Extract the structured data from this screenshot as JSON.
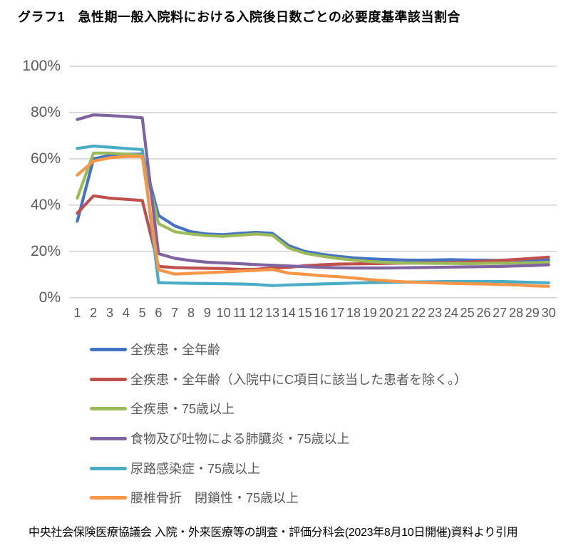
{
  "page": {
    "title": "グラフ1　急性期一般入院料における入院後日数ごとの必要度基準該当割合",
    "footer": "中央社会保険医療協議会 入院・外来医療等の調査・評価分科会(2023年8月10日開催)資料より引用"
  },
  "chart_data": {
    "type": "line",
    "title": "急性期一般入院料における入院後日数ごとの必要度基準該当割合",
    "x": [
      1,
      2,
      3,
      4,
      5,
      6,
      7,
      8,
      9,
      10,
      11,
      12,
      13,
      14,
      15,
      16,
      17,
      18,
      19,
      20,
      21,
      22,
      23,
      24,
      25,
      26,
      27,
      28,
      29,
      30
    ],
    "ylim": [
      0,
      100
    ],
    "y_ticks": [
      {
        "value": 0,
        "label": "0%"
      },
      {
        "value": 20,
        "label": "20%"
      },
      {
        "value": 40,
        "label": "40%"
      },
      {
        "value": 60,
        "label": "60%"
      },
      {
        "value": 80,
        "label": "80%"
      },
      {
        "value": 100,
        "label": "100%"
      }
    ],
    "grid": "horizontal",
    "legend_position": "bottom-left",
    "gridline_color": "#D8D8D8",
    "axis_text_color": "#595959",
    "series": [
      {
        "name": "全疾患・全年齢",
        "color": "#4472C4",
        "values": [
          33,
          60,
          61.5,
          62,
          62,
          35.5,
          31,
          28.5,
          27.5,
          27.2,
          27.8,
          28.2,
          27.8,
          22.5,
          20,
          18.8,
          17.9,
          17.2,
          16.8,
          16.5,
          16.3,
          16.2,
          16.3,
          16.4,
          16.3,
          16.2,
          16.1,
          16.1,
          16.2,
          16.3
        ]
      },
      {
        "name": "全疾患・全年齢（入院中にC項目に該当した患者を除く。）",
        "color": "#C0504D",
        "values": [
          36.5,
          44,
          43,
          42.5,
          42,
          13.5,
          13,
          12.8,
          12.7,
          12.6,
          12.2,
          12.3,
          12.8,
          13.1,
          13.8,
          14.2,
          14.5,
          14.6,
          14.7,
          14.8,
          14.9,
          15,
          15.1,
          15.2,
          15.4,
          15.7,
          16.1,
          16.5,
          17,
          17.5
        ]
      },
      {
        "name": "全疾患・75歳以上",
        "color": "#9BBB59",
        "values": [
          43,
          62.5,
          62.5,
          62,
          61.5,
          32,
          28.5,
          27.5,
          26.8,
          26.5,
          27,
          27.5,
          27,
          21.5,
          19.2,
          18,
          17,
          16.2,
          15.6,
          15.2,
          15,
          14.9,
          14.8,
          14.8,
          14.7,
          14.8,
          14.9,
          15,
          15.1,
          15.3
        ]
      },
      {
        "name": "食物及び吐物による肺臓炎・75歳以上",
        "color": "#8064A2",
        "values": [
          77,
          79,
          78.7,
          78.3,
          77.7,
          19,
          17,
          16,
          15.3,
          15,
          14.7,
          14.3,
          14,
          13.7,
          13.4,
          13.1,
          12.9,
          12.8,
          12.8,
          12.8,
          12.9,
          13,
          13.1,
          13.2,
          13.3,
          13.4,
          13.5,
          13.7,
          13.9,
          14.2
        ]
      },
      {
        "name": "尿路感染症・75歳以上",
        "color": "#4BACC6",
        "values": [
          64.5,
          65.5,
          65,
          64.5,
          64,
          6.5,
          6.3,
          6.2,
          6.1,
          6,
          5.9,
          5.7,
          5.2,
          5.5,
          5.7,
          5.9,
          6.1,
          6.3,
          6.5,
          6.6,
          6.7,
          6.8,
          6.9,
          7,
          7,
          7,
          7,
          6.8,
          6.6,
          6.4
        ]
      },
      {
        "name": "腰椎骨折　閉鎖性・75歳以上",
        "color": "#F79646",
        "values": [
          53,
          59,
          60.5,
          61,
          61,
          12,
          10.2,
          10.5,
          10.8,
          11.1,
          11.5,
          11.8,
          12.2,
          10.6,
          10.1,
          9.5,
          9.1,
          8.5,
          7.8,
          7.3,
          6.9,
          6.6,
          6.4,
          6.2,
          6,
          5.9,
          5.7,
          5.5,
          5.1,
          4.9
        ]
      }
    ]
  }
}
